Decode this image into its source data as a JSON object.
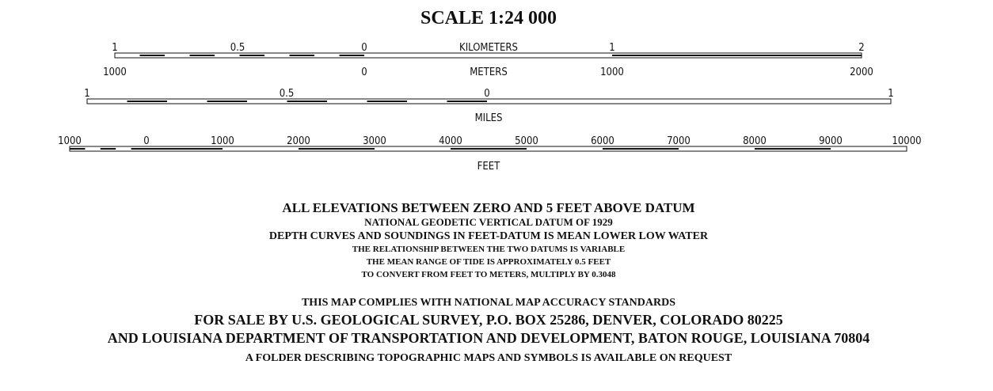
{
  "title": "SCALE 1:24 000",
  "kilometers": {
    "unit": "KILOMETERS",
    "labels": [
      "1",
      "0.5",
      "0",
      "1",
      "2"
    ]
  },
  "meters": {
    "unit": "METERS",
    "labels": [
      "1000",
      "0",
      "1000",
      "2000"
    ]
  },
  "miles": {
    "unit": "MILES",
    "labels": [
      "1",
      "0.5",
      "0",
      "1"
    ]
  },
  "feet": {
    "unit": "FEET",
    "labels": [
      "1000",
      "0",
      "1000",
      "2000",
      "3000",
      "4000",
      "5000",
      "6000",
      "7000",
      "8000",
      "9000",
      "10000"
    ]
  },
  "datum_notes": [
    "ALL ELEVATIONS BETWEEN ZERO AND 5 FEET ABOVE DATUM",
    "NATIONAL GEODETIC VERTICAL DATUM OF 1929",
    "DEPTH CURVES AND SOUNDINGS IN FEET-DATUM IS MEAN LOWER LOW WATER",
    "THE RELATIONSHIP BETWEEN THE TWO DATUMS IS VARIABLE",
    "THE MEAN RANGE OF TIDE IS APPROXIMATELY 0.5 FEET",
    "TO CONVERT FROM FEET TO METERS, MULTIPLY BY 0.3048"
  ],
  "footer": [
    "THIS MAP COMPLIES WITH NATIONAL MAP ACCURACY STANDARDS",
    "FOR SALE BY U.S. GEOLOGICAL SURVEY, P.O. BOX 25286, DENVER, COLORADO 80225",
    "AND LOUISIANA DEPARTMENT OF TRANSPORTATION AND DEVELOPMENT, BATON ROUGE, LOUISIANA 70804",
    "A FOLDER DESCRIBING TOPOGRAPHIC MAPS AND SYMBOLS IS AVAILABLE ON REQUEST"
  ]
}
